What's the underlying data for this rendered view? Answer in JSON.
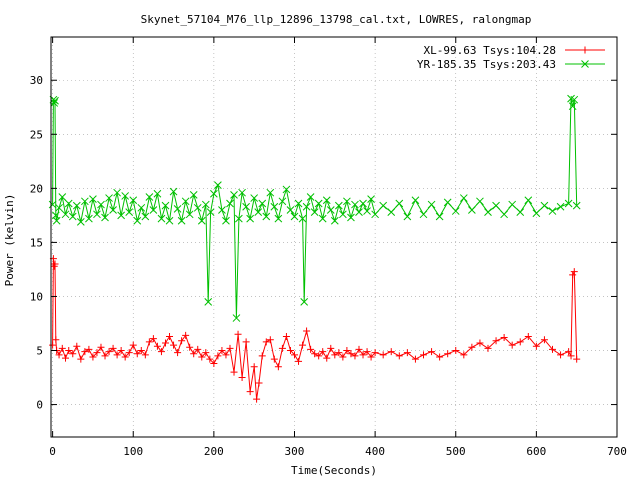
{
  "chart_data": {
    "type": "line",
    "title": "Skynet_57104_M76_llp_12896_13798_cal.txt, LOWRES, ralongmap",
    "xlabel": "Time(Seconds)",
    "ylabel": "Power (kelvin)",
    "xlim": [
      -2,
      700
    ],
    "ylim": [
      -3,
      34
    ],
    "xticks": [
      0,
      100,
      200,
      300,
      400,
      500,
      600,
      700
    ],
    "yticks": [
      0,
      5,
      10,
      15,
      20,
      25,
      30
    ],
    "grid": true,
    "legend_position": "top-right",
    "series": [
      {
        "name": "XL-99.63 Tsys:104.28",
        "color": "#ff0000",
        "marker": "plus",
        "x": [
          0,
          1,
          2,
          3,
          4,
          5,
          8,
          12,
          16,
          20,
          25,
          30,
          35,
          40,
          45,
          50,
          55,
          60,
          65,
          70,
          75,
          80,
          85,
          90,
          95,
          100,
          105,
          110,
          115,
          120,
          125,
          130,
          135,
          140,
          145,
          150,
          155,
          160,
          165,
          170,
          175,
          180,
          185,
          190,
          195,
          200,
          205,
          210,
          215,
          220,
          225,
          230,
          235,
          240,
          245,
          250,
          253,
          256,
          260,
          265,
          270,
          275,
          280,
          285,
          290,
          295,
          300,
          305,
          310,
          315,
          320,
          325,
          330,
          335,
          340,
          345,
          350,
          355,
          360,
          365,
          370,
          375,
          380,
          385,
          390,
          395,
          400,
          410,
          420,
          430,
          440,
          450,
          460,
          470,
          480,
          490,
          500,
          510,
          520,
          530,
          540,
          550,
          560,
          570,
          580,
          590,
          600,
          610,
          620,
          630,
          640,
          643,
          645,
          647,
          650
        ],
        "y": [
          5.5,
          13.5,
          12.8,
          13.0,
          6.0,
          5.0,
          4.6,
          5.2,
          4.3,
          5.0,
          4.7,
          5.4,
          4.2,
          4.9,
          5.1,
          4.4,
          4.8,
          5.3,
          4.5,
          4.9,
          5.2,
          4.6,
          5.0,
          4.4,
          4.8,
          5.5,
          4.7,
          5.0,
          4.6,
          5.8,
          6.1,
          5.4,
          4.9,
          5.7,
          6.3,
          5.5,
          4.8,
          5.9,
          6.4,
          5.3,
          4.7,
          5.1,
          4.4,
          4.8,
          4.2,
          3.8,
          4.5,
          5.0,
          4.6,
          5.2,
          3.0,
          6.5,
          2.5,
          5.8,
          1.2,
          3.5,
          0.5,
          2.0,
          4.5,
          5.8,
          6.0,
          4.2,
          3.5,
          5.2,
          6.3,
          5.0,
          4.6,
          4.0,
          5.5,
          6.8,
          5.1,
          4.7,
          4.5,
          4.9,
          4.3,
          5.2,
          4.6,
          4.8,
          4.4,
          5.0,
          4.7,
          4.5,
          5.1,
          4.6,
          4.9,
          4.4,
          4.8,
          4.6,
          4.9,
          4.5,
          4.8,
          4.2,
          4.6,
          4.9,
          4.4,
          4.7,
          5.0,
          4.6,
          5.3,
          5.7,
          5.2,
          5.9,
          6.2,
          5.5,
          5.8,
          6.3,
          5.4,
          6.0,
          5.1,
          4.6,
          4.9,
          4.5,
          12.0,
          12.3,
          4.2
        ]
      },
      {
        "name": "YR-185.35 Tsys:203.43",
        "color": "#00c000",
        "marker": "cross",
        "x": [
          0,
          1,
          2,
          3,
          4,
          5,
          8,
          12,
          16,
          20,
          25,
          30,
          35,
          40,
          45,
          50,
          55,
          60,
          65,
          70,
          75,
          80,
          85,
          90,
          95,
          100,
          105,
          110,
          115,
          120,
          125,
          130,
          135,
          140,
          145,
          150,
          155,
          160,
          165,
          170,
          175,
          180,
          185,
          190,
          193,
          196,
          200,
          205,
          210,
          215,
          220,
          225,
          228,
          231,
          235,
          240,
          245,
          250,
          255,
          260,
          265,
          270,
          275,
          280,
          285,
          290,
          295,
          300,
          305,
          310,
          312,
          315,
          320,
          325,
          330,
          335,
          340,
          345,
          350,
          355,
          360,
          365,
          370,
          375,
          380,
          385,
          390,
          395,
          400,
          410,
          420,
          430,
          440,
          450,
          460,
          470,
          480,
          490,
          500,
          510,
          520,
          530,
          540,
          550,
          560,
          570,
          580,
          590,
          600,
          610,
          620,
          630,
          640,
          643,
          645,
          647,
          650
        ],
        "y": [
          18.5,
          28.2,
          27.9,
          28.1,
          17.5,
          17.0,
          18.2,
          19.2,
          17.6,
          18.6,
          17.4,
          18.4,
          16.9,
          18.8,
          17.2,
          19.0,
          17.6,
          18.5,
          17.3,
          19.1,
          18.0,
          19.6,
          17.5,
          19.3,
          17.8,
          18.9,
          17.0,
          18.2,
          17.4,
          19.2,
          18.0,
          19.5,
          17.2,
          18.4,
          17.0,
          19.7,
          18.1,
          17.0,
          18.8,
          17.6,
          19.4,
          18.2,
          17.0,
          18.5,
          9.5,
          17.8,
          19.5,
          20.3,
          18.0,
          17.0,
          18.6,
          19.4,
          8.0,
          17.2,
          19.6,
          18.3,
          17.2,
          19.1,
          17.8,
          18.6,
          17.4,
          19.6,
          18.3,
          17.2,
          18.8,
          19.9,
          18.0,
          17.4,
          18.6,
          17.2,
          9.5,
          18.3,
          19.2,
          17.8,
          18.6,
          17.2,
          18.9,
          18.0,
          17.0,
          18.4,
          17.6,
          18.8,
          17.3,
          18.5,
          17.8,
          18.6,
          17.9,
          19.0,
          17.6,
          18.4,
          17.8,
          18.6,
          17.4,
          18.9,
          17.6,
          18.5,
          17.4,
          18.7,
          17.9,
          19.1,
          18.0,
          18.8,
          17.8,
          18.4,
          17.6,
          18.5,
          17.8,
          18.9,
          17.7,
          18.4,
          17.9,
          18.3,
          18.6,
          28.3,
          27.6,
          28.2,
          18.4
        ]
      }
    ]
  }
}
